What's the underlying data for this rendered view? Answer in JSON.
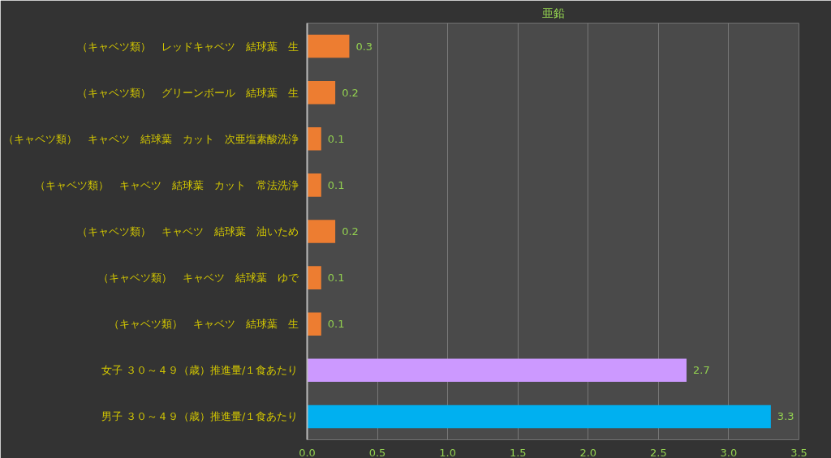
{
  "chart_data": {
    "type": "bar",
    "orientation": "horizontal",
    "title": "亜鉛",
    "categories": [
      "（キャベツ類）　レッドキャベツ　結球葉　生",
      "（キャベツ類）　グリーンボール　結球葉　生",
      "（キャベツ類）　キャベツ　結球葉　カット　次亜塩素酸洗浄",
      "（キャベツ類）　キャベツ　結球葉　カット　常法洗浄",
      "（キャベツ類）　キャベツ　結球葉　油いため",
      "（キャベツ類）　キャベツ　結球葉　ゆで",
      "（キャベツ類）　キャベツ　結球葉　生",
      "女子 ３０～４９（歳）推進量/１食あたり",
      "男子 ３０～４９（歳）推進量/１食あたり"
    ],
    "values": [
      0.3,
      0.2,
      0.1,
      0.1,
      0.2,
      0.1,
      0.1,
      2.7,
      3.3
    ],
    "colors": [
      "#ed7d31",
      "#ed7d31",
      "#ed7d31",
      "#ed7d31",
      "#ed7d31",
      "#ed7d31",
      "#ed7d31",
      "#cc99ff",
      "#00b0f0"
    ],
    "xlim": [
      0,
      3.5
    ],
    "xticks": [
      {
        "value": 0,
        "label": "0.0"
      },
      {
        "value": 0.5,
        "label": "0.5"
      },
      {
        "value": 1,
        "label": "1.0"
      },
      {
        "value": 1.5,
        "label": "1.5"
      },
      {
        "value": 2,
        "label": "2.0"
      },
      {
        "value": 2.5,
        "label": "2.5"
      },
      {
        "value": 3,
        "label": "3.0"
      },
      {
        "value": 3.5,
        "label": "3.5"
      }
    ],
    "grid": "x",
    "data_labels": true
  }
}
